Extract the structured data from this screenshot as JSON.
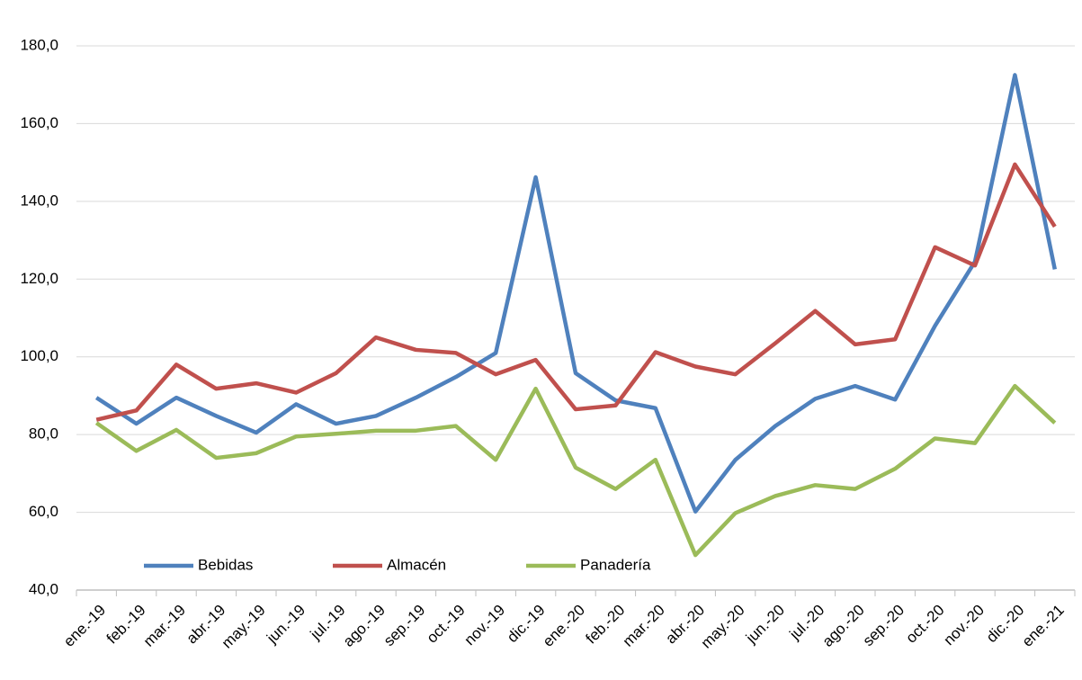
{
  "chart_data": {
    "type": "line",
    "categories": [
      "ene.-19",
      "feb.-19",
      "mar.-19",
      "abr.-19",
      "may.-19",
      "jun.-19",
      "jul.-19",
      "ago.-19",
      "sep.-19",
      "oct.-19",
      "nov.-19",
      "dic.-19",
      "ene.-20",
      "feb.-20",
      "mar.-20",
      "abr.-20",
      "may.-20",
      "jun.-20",
      "jul.-20",
      "ago.-20",
      "sep.-20",
      "oct.-20",
      "nov.-20",
      "dic.-20",
      "ene.-21"
    ],
    "series": [
      {
        "name": "Bebidas",
        "color": "#4f81bd",
        "values": [
          89.5,
          82.8,
          89.5,
          84.8,
          80.5,
          87.8,
          82.8,
          84.8,
          89.5,
          94.8,
          101,
          146.2,
          95.8,
          88.8,
          86.8,
          60.2,
          73.5,
          82.2,
          89.2,
          92.5,
          89,
          108,
          124.5,
          172.5,
          122.5
        ]
      },
      {
        "name": "Almacén",
        "color": "#c0504d",
        "values": [
          83.8,
          86.2,
          98,
          91.8,
          93.2,
          90.8,
          95.8,
          105,
          101.8,
          101,
          95.5,
          99.2,
          86.5,
          87.5,
          101.2,
          97.5,
          95.5,
          103.5,
          111.8,
          103.2,
          104.5,
          128.2,
          123.5,
          149.5,
          133.5
        ]
      },
      {
        "name": "Panadería",
        "color": "#9bbb59",
        "values": [
          83,
          75.8,
          81.2,
          74,
          75.2,
          79.5,
          80.2,
          81,
          81,
          82.2,
          73.5,
          91.8,
          71.5,
          66,
          73.5,
          49,
          59.8,
          64.2,
          67,
          66,
          71.2,
          79,
          77.8,
          92.5,
          83
        ]
      }
    ],
    "ylim": [
      40,
      180
    ],
    "yticks": [
      {
        "value": 40,
        "label": "40,0"
      },
      {
        "value": 60,
        "label": "60,0"
      },
      {
        "value": 80,
        "label": "80,0"
      },
      {
        "value": 100,
        "label": "100,0"
      },
      {
        "value": 120,
        "label": "120,0"
      },
      {
        "value": 140,
        "label": "140,0"
      },
      {
        "value": 160,
        "label": "160,0"
      },
      {
        "value": 180,
        "label": "180,0"
      }
    ],
    "grid": true,
    "legend": "bottom-left"
  }
}
